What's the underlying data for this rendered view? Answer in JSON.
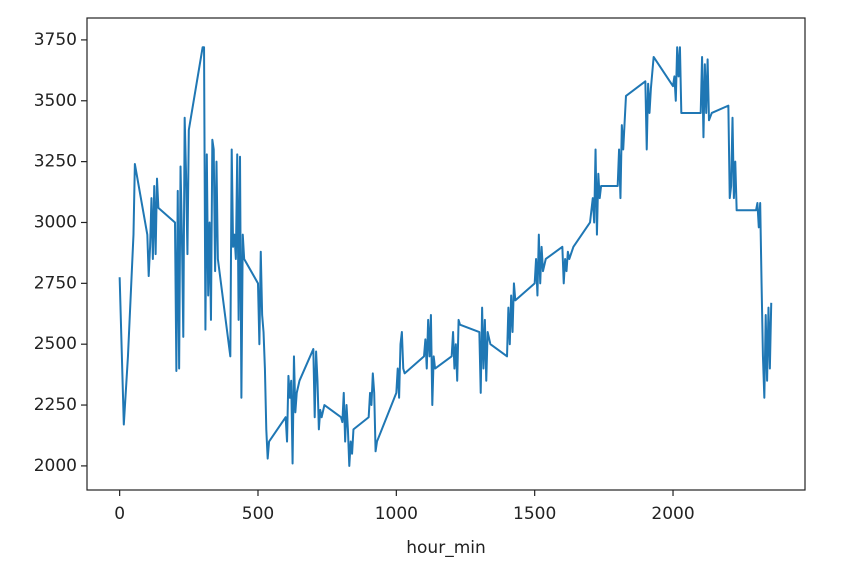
{
  "chart_data": {
    "type": "line",
    "x_label": "hour_min",
    "x": [
      0,
      15,
      30,
      40,
      50,
      55,
      100,
      105,
      110,
      115,
      120,
      125,
      130,
      135,
      140,
      200,
      205,
      210,
      215,
      220,
      225,
      230,
      235,
      240,
      245,
      250,
      300,
      305,
      310,
      315,
      320,
      325,
      330,
      335,
      340,
      345,
      350,
      355,
      400,
      405,
      410,
      415,
      420,
      425,
      430,
      435,
      440,
      445,
      450,
      500,
      505,
      510,
      515,
      520,
      525,
      530,
      535,
      540,
      600,
      605,
      610,
      615,
      620,
      625,
      630,
      635,
      640,
      650,
      700,
      705,
      710,
      715,
      720,
      725,
      730,
      740,
      800,
      805,
      810,
      815,
      820,
      825,
      830,
      835,
      840,
      845,
      900,
      905,
      910,
      915,
      920,
      925,
      930,
      1000,
      1005,
      1010,
      1015,
      1020,
      1025,
      1030,
      1100,
      1105,
      1110,
      1115,
      1120,
      1125,
      1130,
      1135,
      1140,
      1200,
      1205,
      1210,
      1215,
      1220,
      1225,
      1230,
      1300,
      1305,
      1310,
      1315,
      1320,
      1325,
      1330,
      1340,
      1400,
      1405,
      1410,
      1415,
      1420,
      1425,
      1430,
      1500,
      1505,
      1510,
      1515,
      1520,
      1525,
      1530,
      1540,
      1600,
      1605,
      1610,
      1615,
      1620,
      1625,
      1640,
      1700,
      1705,
      1710,
      1715,
      1720,
      1725,
      1730,
      1735,
      1740,
      1800,
      1805,
      1810,
      1815,
      1820,
      1830,
      1900,
      1905,
      1910,
      1915,
      1920,
      1930,
      2000,
      2005,
      2010,
      2015,
      2020,
      2025,
      2030,
      2100,
      2105,
      2110,
      2115,
      2120,
      2125,
      2130,
      2140,
      2200,
      2205,
      2210,
      2215,
      2220,
      2225,
      2230,
      2300,
      2305,
      2310,
      2315,
      2320,
      2325,
      2330,
      2335,
      2340,
      2345,
      2350,
      2355
    ],
    "series": [
      {
        "name": "hour_min",
        "color": "#1f77b4",
        "values": [
          2775,
          2170,
          2450,
          2700,
          2950,
          3240,
          2950,
          2780,
          2900,
          3100,
          2850,
          3150,
          2870,
          3180,
          3060,
          3000,
          2390,
          3130,
          2400,
          3230,
          2950,
          2530,
          3430,
          3200,
          2870,
          3380,
          3720,
          3720,
          2560,
          3280,
          2700,
          3000,
          2600,
          3340,
          3300,
          2800,
          3250,
          2850,
          2450,
          3300,
          2900,
          2950,
          2850,
          3280,
          2600,
          3270,
          2280,
          2950,
          2850,
          2750,
          2500,
          2880,
          2620,
          2550,
          2400,
          2150,
          2030,
          2100,
          2200,
          2100,
          2370,
          2280,
          2350,
          2010,
          2450,
          2220,
          2300,
          2350,
          2480,
          2200,
          2470,
          2350,
          2150,
          2230,
          2200,
          2250,
          2200,
          2180,
          2300,
          2100,
          2250,
          2150,
          2000,
          2100,
          2050,
          2150,
          2200,
          2300,
          2250,
          2380,
          2300,
          2060,
          2100,
          2300,
          2400,
          2280,
          2500,
          2550,
          2400,
          2380,
          2450,
          2520,
          2400,
          2600,
          2450,
          2620,
          2250,
          2450,
          2400,
          2450,
          2550,
          2400,
          2500,
          2350,
          2600,
          2580,
          2550,
          2300,
          2650,
          2400,
          2600,
          2350,
          2550,
          2500,
          2450,
          2650,
          2500,
          2700,
          2550,
          2750,
          2680,
          2750,
          2850,
          2700,
          2950,
          2750,
          2900,
          2800,
          2850,
          2900,
          2750,
          2850,
          2800,
          2880,
          2850,
          2900,
          3000,
          3050,
          3100,
          3000,
          3300,
          2950,
          3200,
          3100,
          3150,
          3150,
          3300,
          3100,
          3400,
          3300,
          3520,
          3580,
          3300,
          3570,
          3450,
          3550,
          3680,
          3560,
          3600,
          3500,
          3720,
          3600,
          3720,
          3450,
          3450,
          3680,
          3350,
          3650,
          3450,
          3670,
          3420,
          3450,
          3480,
          3100,
          3150,
          3430,
          3100,
          3250,
          3050,
          3050,
          3080,
          2980,
          3080,
          2750,
          2450,
          2280,
          2620,
          2350,
          2650,
          2400,
          2670
        ]
      }
    ],
    "xlim": [
      -118,
      2477
    ],
    "ylim": [
      1901,
      3840
    ],
    "xticks": [
      0,
      500,
      1000,
      1500,
      2000
    ],
    "yticks": [
      2000,
      2250,
      2500,
      2750,
      3000,
      3250,
      3500,
      3750
    ],
    "grid": false
  }
}
